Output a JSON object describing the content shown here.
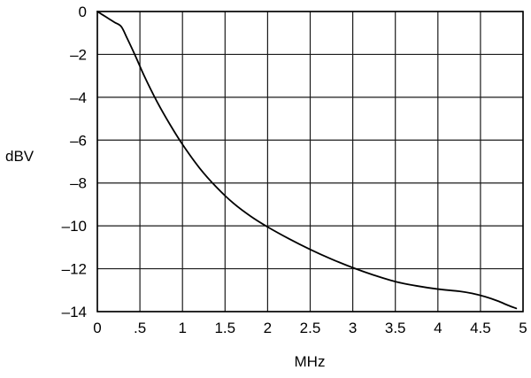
{
  "chart_data": {
    "type": "line",
    "title": "",
    "xlabel": "MHz",
    "ylabel": "dBV",
    "xlim": [
      0,
      5
    ],
    "ylim": [
      -14,
      0
    ],
    "grid": true,
    "x_ticks": [
      {
        "value": 0,
        "label": "0"
      },
      {
        "value": 0.5,
        "label": ".5"
      },
      {
        "value": 1,
        "label": "1"
      },
      {
        "value": 1.5,
        "label": "1.5"
      },
      {
        "value": 2,
        "label": "2"
      },
      {
        "value": 2.5,
        "label": "2.5"
      },
      {
        "value": 3,
        "label": "3"
      },
      {
        "value": 3.5,
        "label": "3.5"
      },
      {
        "value": 4,
        "label": "4"
      },
      {
        "value": 4.5,
        "label": "4.5"
      },
      {
        "value": 5,
        "label": "5"
      }
    ],
    "y_ticks": [
      {
        "value": 0,
        "label": "0"
      },
      {
        "value": -2,
        "label": "–2"
      },
      {
        "value": -4,
        "label": "–4"
      },
      {
        "value": -6,
        "label": "–6"
      },
      {
        "value": -8,
        "label": "–8"
      },
      {
        "value": -10,
        "label": "–10"
      },
      {
        "value": -12,
        "label": "–12"
      },
      {
        "value": -14,
        "label": "–14"
      }
    ],
    "series": [
      {
        "color": "#000000",
        "x": [
          0,
          0.1,
          0.2,
          0.28,
          0.35,
          0.45,
          0.55,
          0.7,
          0.85,
          1.0,
          1.2,
          1.4,
          1.6,
          1.8,
          2.0,
          2.25,
          2.5,
          2.75,
          3.0,
          3.25,
          3.5,
          3.75,
          4.0,
          4.25,
          4.4,
          4.55,
          4.7,
          4.82,
          4.92
        ],
        "y": [
          0,
          -0.25,
          -0.5,
          -0.7,
          -1.25,
          -2.1,
          -3.0,
          -4.2,
          -5.25,
          -6.2,
          -7.3,
          -8.2,
          -8.95,
          -9.55,
          -10.05,
          -10.6,
          -11.1,
          -11.55,
          -11.95,
          -12.3,
          -12.6,
          -12.8,
          -12.95,
          -13.05,
          -13.15,
          -13.3,
          -13.5,
          -13.7,
          -13.85
        ]
      }
    ]
  }
}
